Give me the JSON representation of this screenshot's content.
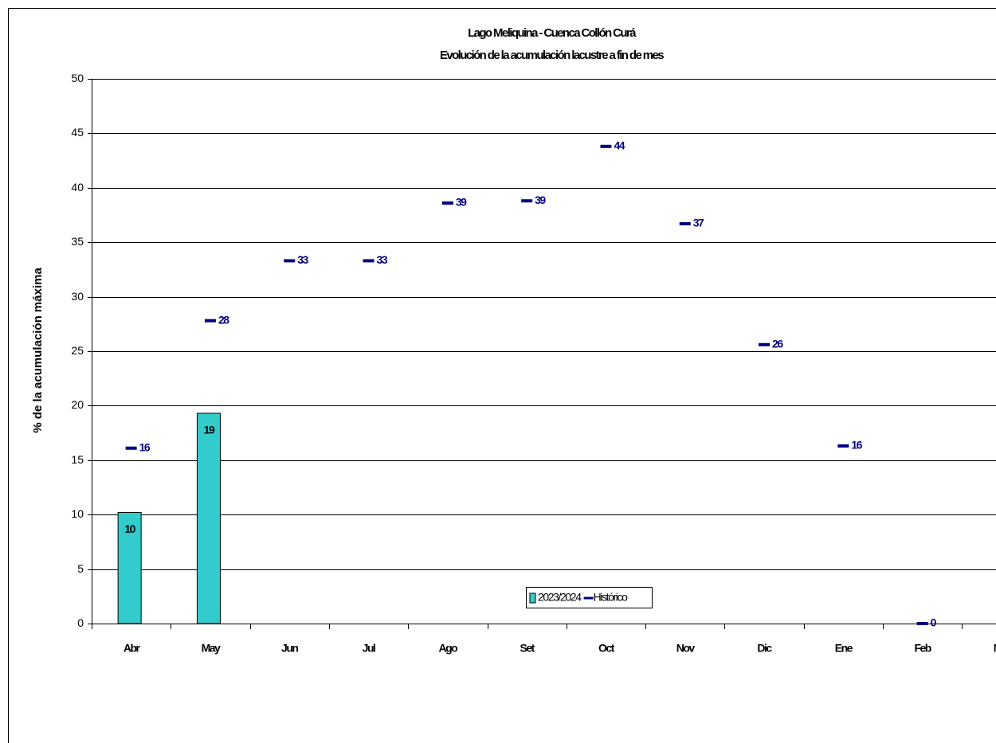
{
  "chart_data": {
    "type": "bar",
    "title": "Lago Meliquina - Cuenca Collón Curá",
    "subtitle": "Evolución de la acumulación lacustre a fin de mes",
    "y_label": "% de la acumulación máxima",
    "categories": [
      "Abr",
      "May",
      "Jun",
      "Jul",
      "Ago",
      "Set",
      "Oct",
      "Nov",
      "Dic",
      "Ene",
      "Feb",
      "Mar"
    ],
    "ylim": [
      0,
      50
    ],
    "yticks": [
      0,
      5,
      10,
      15,
      20,
      25,
      30,
      35,
      40,
      45,
      50
    ],
    "grid": true,
    "legend": "bottom",
    "series": [
      {
        "name": "2023/2024",
        "type": "bar",
        "color": "#33cccc",
        "values": [
          10.2,
          19.3,
          null,
          null,
          null,
          null,
          null,
          null,
          null,
          null,
          null,
          null
        ],
        "value_labels": [
          "10",
          "19",
          null,
          null,
          null,
          null,
          null,
          null,
          null,
          null,
          null,
          null
        ]
      },
      {
        "name": "Histórico",
        "type": "dash",
        "color": "#000080",
        "values": [
          16.1,
          27.8,
          33.3,
          33.3,
          38.6,
          38.8,
          43.8,
          36.7,
          25.6,
          16.3,
          0,
          null
        ],
        "value_labels": [
          "16",
          "28",
          "33",
          "33",
          "39",
          "39",
          "44",
          "37",
          "26",
          "16",
          "0",
          null
        ]
      }
    ]
  }
}
